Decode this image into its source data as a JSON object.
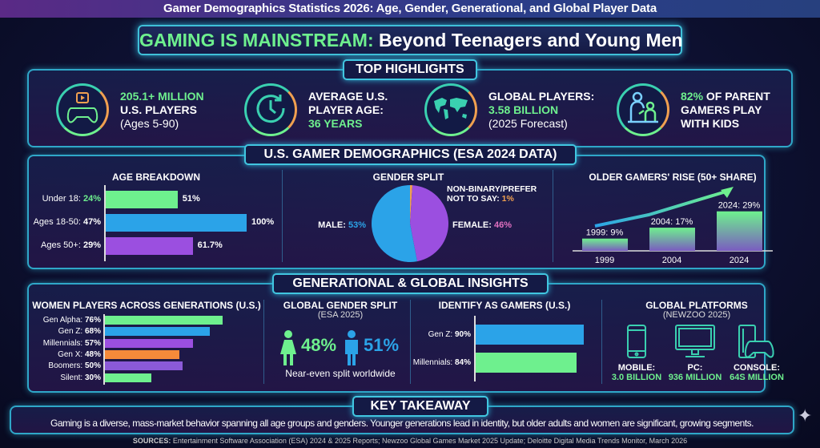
{
  "page_title": "Gamer Demographics Statistics 2026: Age, Gender, Generational, and Global Player Data",
  "banner": {
    "highlight": "GAMING IS MAINSTREAM:",
    "rest": " Beyond Teenagers and Young Men"
  },
  "highlights": {
    "header": "TOP HIGHLIGHTS",
    "items": [
      {
        "icon": "gamepad-icon",
        "l1": "205.1+ MILLION",
        "l2": "U.S. PLAYERS",
        "l3": "(Ages 5-90)"
      },
      {
        "icon": "clock-icon",
        "l1": "AVERAGE U.S.",
        "l2": "PLAYER AGE:",
        "l3": "36 YEARS"
      },
      {
        "icon": "world-map-icon",
        "l1": "GLOBAL PLAYERS:",
        "l2": "3.58 BILLION",
        "l3": "(2025 Forecast)"
      },
      {
        "icon": "parent-child-icon",
        "l1a": "82%",
        "l1b": " OF PARENT",
        "l2": "GAMERS PLAY",
        "l3": "WITH KIDS"
      }
    ]
  },
  "us_section": {
    "header": "U.S. GAMER DEMOGRAPHICS (ESA 2024 DATA)"
  },
  "global_section": {
    "header": "GENERATIONAL & GLOBAL INSIGHTS"
  },
  "global_gender": {
    "title": "GLOBAL GENDER SPLIT",
    "subtitle": "(ESA 2025)",
    "female": "48%",
    "male": "51%",
    "caption": "Near-even split worldwide",
    "female_color": "#6ef08e",
    "male_color": "#2ba3e8"
  },
  "platforms": {
    "title": "GLOBAL PLATFORMS",
    "subtitle": "(NEWZOO 2025)",
    "items": [
      {
        "icon": "smartphone-icon",
        "label": "MOBILE:",
        "value": "3.0 BILLION"
      },
      {
        "icon": "monitor-icon",
        "label": "PC:",
        "value": "936 MILLION"
      },
      {
        "icon": "console-icon",
        "label": "CONSOLE:",
        "value": "64S MILLION"
      }
    ]
  },
  "takeaway": {
    "header": "KEY TAKEAWAY",
    "text": "Gaming is a diverse, mass-market behavior spanning all age groups and genders. Younger generations lead in identity, but older adults and women are significant, growing segments."
  },
  "sources": {
    "label": "SOURCES:",
    "text": " Entertainment Software Association (ESA) 2024 & 2025 Reports; Newzoo Global Games Market 2025 Update; Deloitte Digital Media Trends Monitor, March 2026"
  },
  "chart_data": [
    {
      "type": "bar",
      "orientation": "horizontal",
      "title": "AGE BREAKDOWN",
      "categories": [
        "Under 18",
        "Ages 18-50",
        "Ages 50+"
      ],
      "category_values": [
        "24%",
        "47%",
        "29%"
      ],
      "values": [
        51,
        100,
        61.7
      ],
      "data_labels": [
        "51%",
        "100%",
        "61.7%"
      ],
      "colors": [
        "#6ef08e",
        "#2ba3e8",
        "#9b4fe0"
      ]
    },
    {
      "type": "pie",
      "title": "GENDER SPLIT",
      "categories": [
        "MALE",
        "FEMALE",
        "NON-BINARY/PREFER NOT TO SAY"
      ],
      "values": [
        53,
        46,
        1
      ],
      "labels": [
        "53%",
        "46%",
        "1%"
      ],
      "colors": [
        "#2ba3e8",
        "#9b4fe0",
        "#f0a050"
      ]
    },
    {
      "type": "bar",
      "title": "OLDER GAMERS' RISE (50+ SHARE)",
      "categories": [
        "1999",
        "2004",
        "2024"
      ],
      "values": [
        9,
        17,
        29
      ],
      "data_labels": [
        "1999: 9%",
        "2004: 17%",
        "2024: 29%"
      ],
      "trend_arrow": true
    },
    {
      "type": "bar",
      "orientation": "horizontal",
      "title": "WOMEN PLAYERS ACROSS GENERATIONS (U.S.)",
      "categories": [
        "Gen Alpha",
        "Gen Z",
        "Millennials",
        "Gen X",
        "Boomers",
        "Silent"
      ],
      "values": [
        76,
        68,
        57,
        48,
        50,
        30
      ],
      "colors": [
        "#6ef08e",
        "#2ba3e8",
        "#9b4fe0",
        "#f58a3a",
        "#8b5ad8",
        "#6ef08e"
      ]
    },
    {
      "type": "bar",
      "orientation": "horizontal",
      "title": "IDENTIFY AS GAMERS (U.S.)",
      "categories": [
        "Gen Z",
        "Millennials"
      ],
      "values": [
        90,
        84
      ],
      "colors": [
        "#2ba3e8",
        "#6ef08e"
      ]
    }
  ]
}
